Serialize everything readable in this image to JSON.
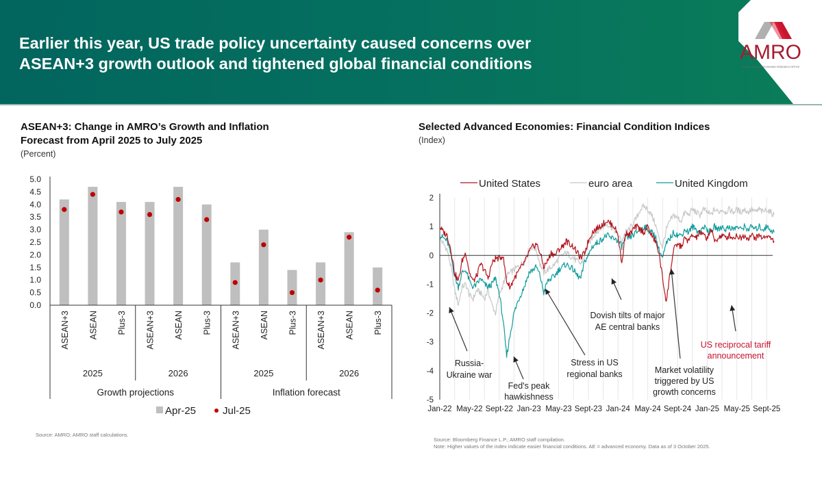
{
  "header": {
    "title_line1": "Earlier this year, US trade policy uncertainty caused concerns over",
    "title_line2": "ASEAN+3 growth outlook and tightened global financial conditions",
    "logo_text": "AMRO",
    "logo_subtext": "ASEAN +3 MACROECONOMIC RESEARCH OFFICE"
  },
  "colors": {
    "header_bg": "#02655e",
    "bar_gray": "#bfbfbf",
    "dot_red": "#c00000",
    "us_red": "#b5121b",
    "euro_gray": "#c8c8c8",
    "uk_teal": "#0f9b9b",
    "annotation_red": "#c8102e",
    "logo_red": "#a51c30"
  },
  "left_panel": {
    "title_line1": "ASEAN+3: Change in AMRO’s Growth and Inflation",
    "title_line2": "Forecast from April 2025 to July 2025",
    "subtitle": "(Percent)",
    "source": "Source: AMRO; AMRO staff calculations."
  },
  "right_panel": {
    "title": "Selected Advanced Economies: Financial Condition Indices",
    "subtitle": "(Index)",
    "source": "Source: Bloomberg Finance L.P.; AMRO staff compilation.",
    "note": "Note: Higher values of the index indicate easier financial conditions. AE = advanced economy. Data as of 3 October 2025."
  },
  "chart_data": [
    {
      "type": "bar",
      "title": "ASEAN+3: Change in AMRO’s Growth and Inflation Forecast from April 2025 to July 2025",
      "ylabel": "(Percent)",
      "ylim": [
        0,
        5.0
      ],
      "yticks": [
        "0.0",
        "0.5",
        "1.0",
        "1.5",
        "2.0",
        "2.5",
        "3.0",
        "3.5",
        "4.0",
        "4.5",
        "5.0"
      ],
      "categories": [
        "ASEAN+3",
        "ASEAN",
        "Plus-3",
        "ASEAN+3",
        "ASEAN",
        "Plus-3",
        "ASEAN+3",
        "ASEAN",
        "Plus-3",
        "ASEAN+3",
        "ASEAN",
        "Plus-3"
      ],
      "groups_level1": [
        "2025",
        "2026",
        "2025",
        "2026"
      ],
      "groups_level2": [
        "Growth projections",
        "Inflation forecast"
      ],
      "series": [
        {
          "name": "Apr-25",
          "style": "bar",
          "values": [
            4.2,
            4.7,
            4.1,
            4.1,
            4.7,
            4.0,
            1.7,
            3.0,
            1.4,
            1.7,
            2.9,
            1.5
          ]
        },
        {
          "name": "Jul-25",
          "style": "dot",
          "values": [
            3.8,
            4.4,
            3.7,
            3.6,
            4.2,
            3.4,
            0.9,
            2.4,
            0.5,
            1.0,
            2.7,
            0.6
          ]
        }
      ],
      "legend": [
        "Apr-25",
        "Jul-25"
      ],
      "legend_position": "bottom"
    },
    {
      "type": "line",
      "title": "Selected Advanced Economies: Financial Condition Indices",
      "ylabel": "(Index)",
      "ylim": [
        -5,
        2
      ],
      "yticks": [
        "2",
        "1",
        "0",
        "-1",
        "-2",
        "-3",
        "-4",
        "-5"
      ],
      "xticks": [
        "Jan-22",
        "May-22",
        "Sept-22",
        "Jan-23",
        "May-23",
        "Sept-23",
        "Jan-24",
        "May-24",
        "Sept-24",
        "Jan-25",
        "May-25",
        "Sept-25"
      ],
      "x_start": "Jan-22",
      "x_end": "Oct-25",
      "grid": "vertical",
      "legend_position": "top",
      "x_months": [
        0,
        0.5,
        1,
        1.5,
        2,
        2.5,
        3,
        3.5,
        4,
        4.5,
        5,
        5.5,
        6,
        6.5,
        7,
        7.5,
        8,
        8.5,
        9,
        9.5,
        10,
        10.5,
        11,
        11.5,
        12,
        12.5,
        13,
        13.5,
        14,
        14.5,
        15,
        15.5,
        16,
        16.5,
        17,
        17.5,
        18,
        18.5,
        19,
        19.5,
        20,
        20.5,
        21,
        21.5,
        22,
        22.5,
        23,
        23.5,
        24,
        24.5,
        25,
        25.5,
        26,
        26.5,
        27,
        27.5,
        28,
        28.5,
        29,
        29.5,
        30,
        30.5,
        31,
        31.5,
        32,
        32.5,
        33,
        33.5,
        34,
        34.5,
        35,
        35.5,
        36,
        36.5,
        37,
        37.5,
        38,
        38.5,
        39,
        39.5,
        40,
        40.5,
        41,
        41.5,
        42,
        42.5,
        43,
        43.5,
        44,
        44.5,
        45
      ],
      "series": [
        {
          "name": "United States",
          "values": [
            1.0,
            0.8,
            0.7,
            0.2,
            -0.6,
            -0.9,
            -0.2,
            0.1,
            -0.6,
            -0.9,
            -0.7,
            -0.3,
            -0.5,
            -0.8,
            -0.3,
            -0.1,
            -0.1,
            0.0,
            -0.9,
            -1.1,
            -0.8,
            -0.6,
            -0.4,
            -0.2,
            0.1,
            0.3,
            0.4,
            0.1,
            -0.4,
            -0.2,
            0.1,
            0.0,
            0.2,
            0.3,
            0.5,
            0.4,
            0.3,
            0.1,
            -0.1,
            0.1,
            0.5,
            0.8,
            0.9,
            1.0,
            1.1,
            1.2,
            1.1,
            1.0,
            0.7,
            -0.3,
            0.8,
            0.7,
            0.9,
            1.0,
            0.9,
            0.8,
            1.0,
            0.7,
            0.5,
            0.1,
            -0.8,
            -1.6,
            -0.6,
            0.2,
            0.4,
            0.3,
            0.6,
            0.5,
            0.7,
            0.6,
            0.8,
            0.7,
            0.6,
            0.9,
            0.5,
            0.6,
            0.7,
            0.6,
            0.7,
            0.6,
            0.7,
            0.6,
            0.7,
            0.6,
            0.7,
            0.6,
            0.7,
            0.6,
            0.7,
            0.6,
            0.5
          ]
        },
        {
          "name": "euro area",
          "values": [
            0.6,
            0.4,
            0.2,
            -0.4,
            -1.2,
            -1.7,
            -1.1,
            -1.0,
            -1.4,
            -1.5,
            -1.2,
            -1.3,
            -1.5,
            -1.2,
            -1.7,
            -2.0,
            -1.4,
            -1.0,
            -0.7,
            -0.6,
            -0.5,
            -0.4,
            -0.3,
            -0.2,
            0.2,
            0.3,
            0.2,
            -0.3,
            -0.6,
            -0.5,
            -0.4,
            -0.3,
            -0.1,
            0.0,
            0.1,
            0.0,
            -0.1,
            -0.2,
            -0.3,
            0.0,
            0.4,
            0.6,
            0.8,
            0.9,
            1.0,
            1.1,
            1.0,
            0.9,
            0.7,
            0.5,
            0.8,
            0.9,
            1.1,
            1.3,
            1.6,
            1.7,
            1.6,
            1.4,
            1.1,
            0.6,
            0.3,
            0.9,
            1.2,
            1.4,
            1.3,
            1.2,
            1.5,
            1.4,
            1.6,
            1.5,
            1.4,
            1.6,
            1.5,
            1.4,
            1.6,
            1.5,
            1.6,
            1.5,
            1.6,
            1.5,
            1.6,
            1.5,
            1.6,
            1.5,
            1.6,
            1.5,
            1.6,
            1.5,
            1.6,
            1.5,
            1.4
          ]
        },
        {
          "name": "United Kingdom",
          "values": [
            0.7,
            0.6,
            0.5,
            0.0,
            -0.7,
            -1.1,
            -0.6,
            -0.5,
            -0.9,
            -1.1,
            -1.0,
            -0.8,
            -1.0,
            -1.1,
            -1.0,
            -0.8,
            -1.3,
            -2.2,
            -3.5,
            -2.7,
            -2.0,
            -1.6,
            -1.3,
            -1.0,
            -0.6,
            -0.5,
            -0.4,
            -0.7,
            -1.3,
            -0.9,
            -0.8,
            -0.7,
            -0.5,
            -0.4,
            -0.3,
            -0.4,
            -0.5,
            -0.7,
            -0.8,
            -0.2,
            0.0,
            0.3,
            0.4,
            0.5,
            0.6,
            0.7,
            0.6,
            0.6,
            0.5,
            0.3,
            0.6,
            0.6,
            0.7,
            0.8,
            0.9,
            1.0,
            0.9,
            0.8,
            0.7,
            0.2,
            -0.1,
            0.4,
            0.6,
            0.8,
            0.7,
            0.7,
            0.9,
            0.8,
            1.0,
            0.9,
            0.8,
            1.0,
            0.9,
            0.8,
            1.0,
            0.9,
            1.0,
            0.9,
            1.0,
            0.9,
            1.0,
            0.9,
            1.0,
            0.9,
            1.0,
            0.9,
            1.0,
            0.9,
            1.0,
            0.9,
            0.8
          ]
        }
      ],
      "annotations": [
        {
          "id": "russia",
          "lines": [
            "Russia-",
            "Ukraine war"
          ],
          "color": "#222"
        },
        {
          "id": "fed",
          "lines": [
            "Fed's peak",
            "hawkishness"
          ],
          "color": "#222"
        },
        {
          "id": "svb",
          "lines": [
            "Stress in US",
            "regional banks"
          ],
          "color": "#222"
        },
        {
          "id": "dovish",
          "lines": [
            "Dovish tilts of major",
            "AE central banks"
          ],
          "color": "#222"
        },
        {
          "id": "volatility",
          "lines": [
            "Market volatility",
            "triggered by US",
            "growth concerns"
          ],
          "color": "#222"
        },
        {
          "id": "tariff",
          "lines": [
            "US reciprocal tariff",
            "announcement"
          ],
          "color": "#c8102e"
        }
      ]
    }
  ]
}
